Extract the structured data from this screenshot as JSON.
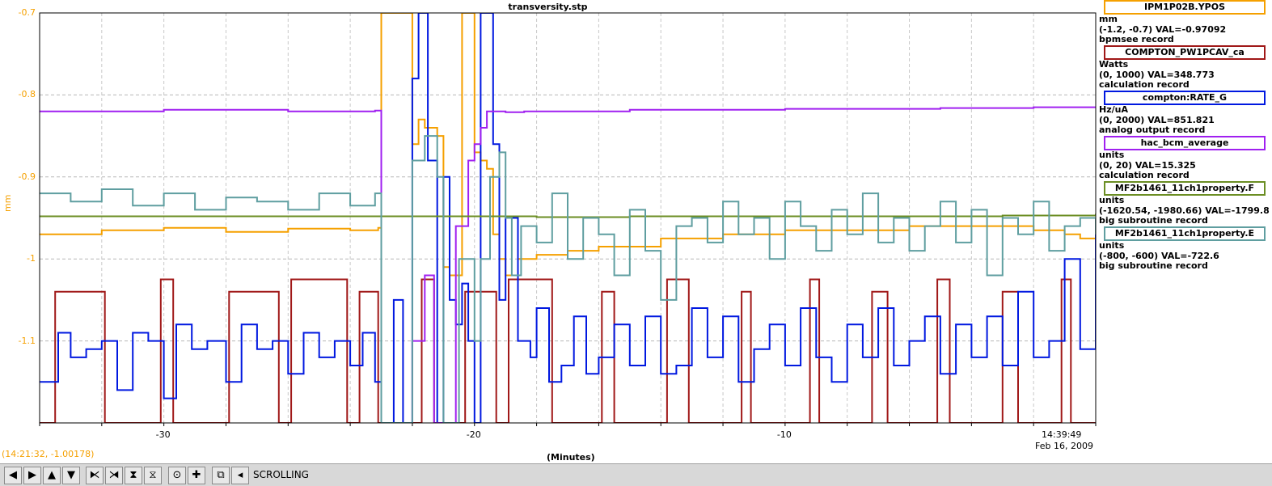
{
  "chart_data": {
    "type": "line",
    "title": "transversity.stp",
    "ylabel": "mm",
    "xlabel": "(Minutes)",
    "y_ticks": [
      "-0.7",
      "-0.8",
      "-0.9",
      "-1",
      "-1.1"
    ],
    "x_ticks": [
      "-30",
      "-20",
      "-10"
    ],
    "xlim": [
      -34,
      0
    ],
    "ylim": [
      -1.2,
      -0.7
    ],
    "time_now": "14:39:49",
    "date_now": "Feb 16, 2009",
    "grid": true,
    "legend_position": "right",
    "series": [
      {
        "name": "IPM1P02B.YPOS",
        "color": "#f5a000",
        "unit": "mm",
        "range_text": "(-1.2, -0.7) VAL=-0.97092",
        "record_type": "bpmsee record",
        "x": [
          -34,
          -32,
          -30,
          -28,
          -26,
          -24,
          -23.1,
          -23,
          -22.6,
          -22,
          -21.8,
          -21.6,
          -21.2,
          -21,
          -20.8,
          -20.4,
          -20.2,
          -20,
          -19.8,
          -19.6,
          -19.4,
          -19.2,
          -19,
          -18.6,
          -18,
          -17,
          -16,
          -14,
          -12,
          -10,
          -8,
          -6,
          -4,
          -2,
          -1,
          -0.5,
          0
        ],
        "y": [
          -0.97,
          -0.965,
          -0.962,
          -0.967,
          -0.963,
          -0.965,
          -0.962,
          -0.7,
          -0.7,
          -0.86,
          -0.83,
          -0.84,
          -0.85,
          -1.01,
          -1.02,
          -0.7,
          -0.7,
          -0.87,
          -0.88,
          -0.89,
          -0.97,
          -1.0,
          -1.02,
          -1.0,
          -0.995,
          -0.99,
          -0.985,
          -0.975,
          -0.97,
          -0.965,
          -0.965,
          -0.96,
          -0.96,
          -0.965,
          -0.97,
          -0.975,
          -0.97
        ]
      },
      {
        "name": "COMPTON_PW1PCAV_ca",
        "color": "#a01818",
        "unit": "Watts",
        "range_text": "(0, 1000) VAL=348.773",
        "record_type": "calculation record",
        "x": [
          -34,
          -33.6,
          -33.5,
          -32,
          -31.9,
          -30.2,
          -30.1,
          -29.8,
          -29.7,
          -28,
          -27.9,
          -26.4,
          -26.3,
          -26,
          -25.9,
          -24.2,
          -24.1,
          -23.8,
          -23.7,
          -23.2,
          -23.1,
          -21.8,
          -21.7,
          -21.4,
          -21.3,
          -20.4,
          -20.3,
          -19.4,
          -19.3,
          -19,
          -18.9,
          -17.6,
          -17.5,
          -16,
          -15.9,
          -15.6,
          -15.5,
          -13.9,
          -13.8,
          -13.2,
          -13.1,
          -11.5,
          -11.4,
          -11.2,
          -11.1,
          -9.3,
          -9.2,
          -9,
          -8.9,
          -7.3,
          -7.2,
          -6.8,
          -6.7,
          -5.2,
          -5.1,
          -4.8,
          -4.7,
          -3.1,
          -3,
          -2.6,
          -2.5,
          -1.2,
          -1.1,
          -0.9,
          -0.8,
          0
        ],
        "y": [
          -1.2,
          -1.2,
          -1.04,
          -1.04,
          -1.2,
          -1.2,
          -1.025,
          -1.025,
          -1.2,
          -1.2,
          -1.04,
          -1.04,
          -1.2,
          -1.2,
          -1.025,
          -1.025,
          -1.2,
          -1.2,
          -1.04,
          -1.04,
          -1.2,
          -1.2,
          -1.025,
          -1.025,
          -1.2,
          -1.2,
          -1.04,
          -1.04,
          -1.2,
          -1.2,
          -1.025,
          -1.025,
          -1.2,
          -1.2,
          -1.04,
          -1.04,
          -1.2,
          -1.2,
          -1.025,
          -1.025,
          -1.2,
          -1.2,
          -1.04,
          -1.04,
          -1.2,
          -1.2,
          -1.025,
          -1.025,
          -1.2,
          -1.2,
          -1.04,
          -1.04,
          -1.2,
          -1.2,
          -1.025,
          -1.025,
          -1.2,
          -1.2,
          -1.04,
          -1.04,
          -1.2,
          -1.2,
          -1.025,
          -1.025,
          -1.2,
          -1.2
        ]
      },
      {
        "name": "compton:RATE_G",
        "color": "#0018e0",
        "unit": "Hz/uA",
        "range_text": "(0, 2000) VAL=851.821",
        "record_type": "analog output record",
        "x": [
          -34,
          -33.4,
          -33,
          -32.5,
          -32,
          -31.5,
          -31,
          -30.5,
          -30,
          -29.6,
          -29.1,
          -28.6,
          -28,
          -27.5,
          -27,
          -26.5,
          -26,
          -25.5,
          -25,
          -24.5,
          -24,
          -23.6,
          -23.2,
          -23,
          -22.8,
          -22.6,
          -22.3,
          -22,
          -21.8,
          -21.5,
          -21.2,
          -21,
          -20.8,
          -20.6,
          -20.4,
          -20.2,
          -20,
          -19.8,
          -19.6,
          -19.4,
          -19.2,
          -19,
          -18.6,
          -18.2,
          -18,
          -17.6,
          -17.2,
          -16.8,
          -16.4,
          -16,
          -15.5,
          -15,
          -14.5,
          -14,
          -13.5,
          -13,
          -12.5,
          -12,
          -11.5,
          -11,
          -10.5,
          -10,
          -9.5,
          -9,
          -8.5,
          -8,
          -7.5,
          -7,
          -6.5,
          -6,
          -5.5,
          -5,
          -4.5,
          -4,
          -3.5,
          -3,
          -2.5,
          -2,
          -1.5,
          -1,
          -0.5,
          0
        ],
        "y": [
          -1.15,
          -1.09,
          -1.12,
          -1.11,
          -1.1,
          -1.16,
          -1.09,
          -1.1,
          -1.17,
          -1.08,
          -1.11,
          -1.1,
          -1.15,
          -1.08,
          -1.11,
          -1.1,
          -1.14,
          -1.09,
          -1.12,
          -1.1,
          -1.13,
          -1.09,
          -1.15,
          -1.2,
          -1.2,
          -1.05,
          -1.2,
          -0.78,
          -0.7,
          -0.88,
          -1.2,
          -0.9,
          -1.05,
          -1.08,
          -1.03,
          -1.1,
          -1.2,
          -0.7,
          -0.7,
          -0.86,
          -1.05,
          -0.95,
          -1.1,
          -1.12,
          -1.06,
          -1.15,
          -1.13,
          -1.07,
          -1.14,
          -1.12,
          -1.08,
          -1.13,
          -1.07,
          -1.14,
          -1.13,
          -1.06,
          -1.12,
          -1.07,
          -1.15,
          -1.11,
          -1.08,
          -1.13,
          -1.06,
          -1.12,
          -1.15,
          -1.08,
          -1.12,
          -1.06,
          -1.13,
          -1.1,
          -1.07,
          -1.14,
          -1.08,
          -1.12,
          -1.07,
          -1.13,
          -1.04,
          -1.12,
          -1.1,
          -1.0,
          -1.11,
          -0.97
        ]
      },
      {
        "name": "hac_bcm_average",
        "color": "#a020f0",
        "unit": "units",
        "range_text": "(0, 20) VAL=15.325",
        "record_type": "calculation record",
        "x": [
          -34,
          -30,
          -26,
          -23.2,
          -23,
          -22.6,
          -22,
          -21.6,
          -21.3,
          -21,
          -20.6,
          -20.2,
          -20,
          -19.8,
          -19.6,
          -19.4,
          -19.2,
          -19,
          -18.4,
          -15,
          -10,
          -5,
          -2,
          0
        ],
        "y": [
          -0.82,
          -0.818,
          -0.82,
          -0.819,
          -1.2,
          -1.2,
          -1.1,
          -1.02,
          -1.2,
          -1.2,
          -0.96,
          -0.88,
          -0.86,
          -0.84,
          -0.82,
          -0.82,
          -0.82,
          -0.821,
          -0.82,
          -0.818,
          -0.817,
          -0.816,
          -0.815,
          -0.815
        ]
      },
      {
        "name": "MF2b1461_11ch1property.F",
        "color": "#6b8e23",
        "unit": "units",
        "range_text": "(-1620.54, -1980.66) VAL=-1799.8",
        "record_type": "big subroutine record",
        "x": [
          -34,
          -25,
          -23.2,
          -18.5,
          -18,
          -15,
          -10,
          -5,
          -3,
          -1,
          0
        ],
        "y": [
          -0.948,
          -0.948,
          -0.948,
          -0.948,
          -0.949,
          -0.948,
          -0.948,
          -0.948,
          -0.947,
          -0.947,
          -0.945
        ]
      },
      {
        "name": "MF2b1461_11ch1property.E",
        "color": "#5f9ea0",
        "unit": "units",
        "range_text": "(-800, -600) VAL=-722.6",
        "record_type": "big subroutine record",
        "x": [
          -34,
          -33,
          -32,
          -31,
          -30,
          -29,
          -28,
          -27,
          -26,
          -25,
          -24,
          -23.2,
          -23,
          -22.5,
          -22,
          -21.6,
          -21.2,
          -21,
          -20.5,
          -20,
          -19.8,
          -19.5,
          -19.2,
          -19,
          -18.8,
          -18.5,
          -18,
          -17.5,
          -17,
          -16.5,
          -16,
          -15.5,
          -15,
          -14.5,
          -14,
          -13.5,
          -13,
          -12.5,
          -12,
          -11.5,
          -11,
          -10.5,
          -10,
          -9.5,
          -9,
          -8.5,
          -8,
          -7.5,
          -7,
          -6.5,
          -6,
          -5.5,
          -5,
          -4.5,
          -4,
          -3.5,
          -3,
          -2.5,
          -2,
          -1.5,
          -1,
          -0.5,
          0
        ],
        "y": [
          -0.92,
          -0.93,
          -0.915,
          -0.935,
          -0.92,
          -0.94,
          -0.925,
          -0.93,
          -0.94,
          -0.92,
          -0.935,
          -0.92,
          -1.2,
          -1.2,
          -0.88,
          -0.85,
          -0.9,
          -1.2,
          -1.0,
          -1.1,
          -1.0,
          -0.9,
          -0.87,
          -0.95,
          -1.02,
          -0.96,
          -0.98,
          -0.92,
          -1.0,
          -0.95,
          -0.97,
          -1.02,
          -0.94,
          -0.99,
          -1.05,
          -0.96,
          -0.95,
          -0.98,
          -0.93,
          -0.97,
          -0.95,
          -1.0,
          -0.93,
          -0.96,
          -0.99,
          -0.94,
          -0.97,
          -0.92,
          -0.98,
          -0.95,
          -0.99,
          -0.96,
          -0.93,
          -0.98,
          -0.94,
          -1.02,
          -0.95,
          -0.97,
          -0.93,
          -0.99,
          -0.96,
          -0.95,
          -0.97
        ]
      }
    ]
  },
  "cursor_readout": "(14:21:32, -1.00178)",
  "toolbar": {
    "buttons": [
      "left-arrow-icon",
      "right-arrow-icon",
      "up-arrow-icon",
      "down-arrow-icon",
      "shrink-horizontal-icon",
      "expand-horizontal-icon",
      "shrink-vertical-icon",
      "expand-vertical-icon",
      "record-icon",
      "add-icon",
      "autoscale-icon",
      "back-icon"
    ],
    "glyphs": [
      "◀",
      "▶",
      "▲",
      "▼",
      "⧔",
      "⧕",
      "⧗",
      "⧖",
      "⊙",
      "✚",
      "⧉",
      "◂"
    ],
    "status": "SCROLLING"
  }
}
